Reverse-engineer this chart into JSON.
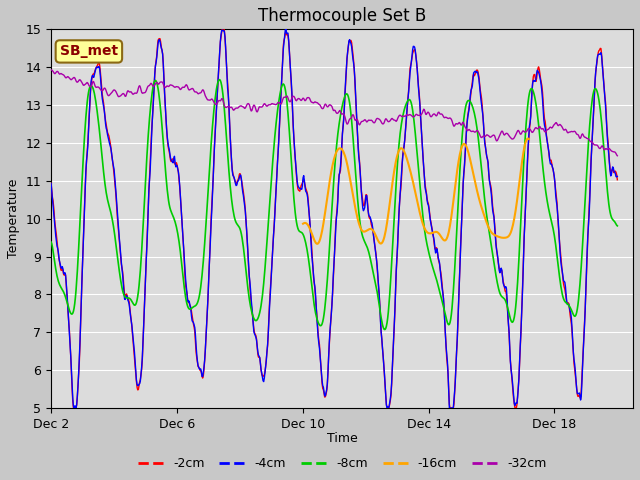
{
  "title": "Thermocouple Set B",
  "xlabel": "Time",
  "ylabel": "Temperature",
  "ylim": [
    5.0,
    15.0
  ],
  "yticks": [
    5.0,
    6.0,
    7.0,
    8.0,
    9.0,
    10.0,
    11.0,
    12.0,
    13.0,
    14.0,
    15.0
  ],
  "xtick_labels": [
    "Dec 2",
    "Dec 6",
    "Dec 10",
    "Dec 14",
    "Dec 18"
  ],
  "xtick_positions": [
    1,
    5,
    9,
    13,
    17
  ],
  "xlim": [
    1,
    19.5
  ],
  "fig_facecolor": "#c8c8c8",
  "ax_facecolor": "#dcdcdc",
  "grid_color": "#ffffff",
  "legend_box_label": "SB_met",
  "legend_box_facecolor": "#ffff99",
  "legend_box_edgecolor": "#8b6914",
  "legend_box_textcolor": "#8b0000",
  "line_colors": {
    "-2cm": "#ff0000",
    "-4cm": "#0000ff",
    "-8cm": "#00cc00",
    "-16cm": "#ffa500",
    "-32cm": "#aa00aa"
  },
  "line_widths": {
    "-2cm": 1.0,
    "-4cm": 1.0,
    "-8cm": 1.2,
    "-16cm": 1.5,
    "-32cm": 1.0
  },
  "title_fontsize": 12,
  "axis_label_fontsize": 9,
  "tick_fontsize": 9,
  "legend_fontsize": 9,
  "figsize": [
    6.4,
    4.8
  ],
  "dpi": 100
}
